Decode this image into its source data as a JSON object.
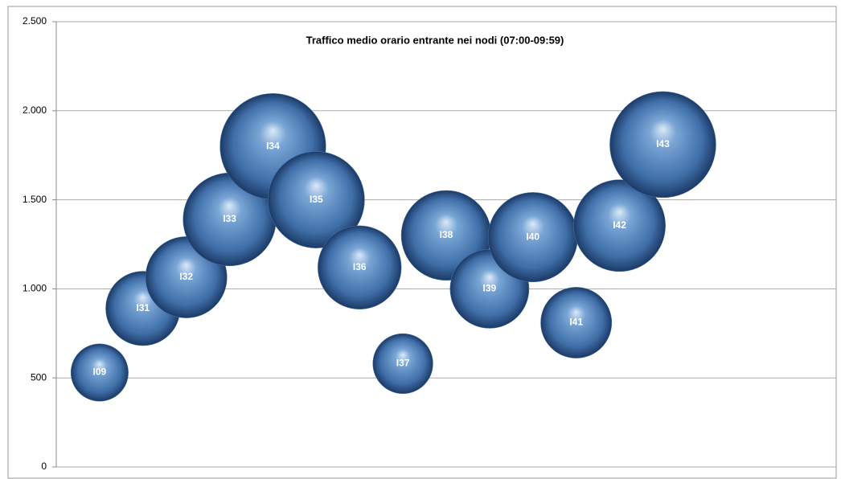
{
  "chart_data": {
    "type": "bubble",
    "title": "Traffico medio orario entrante nei nodi (07:00-09:59)",
    "categories": [
      "I09",
      "I31",
      "I32",
      "I33",
      "I34",
      "I35",
      "I36",
      "I37",
      "I38",
      "I39",
      "I40",
      "I41",
      "I42",
      "I43"
    ],
    "x": [
      1,
      2,
      3,
      4,
      5,
      6,
      7,
      8,
      9,
      10,
      11,
      12,
      13,
      14
    ],
    "values": [
      530,
      890,
      1065,
      1390,
      1800,
      1500,
      1120,
      580,
      1300,
      1000,
      1290,
      810,
      1355,
      1810
    ],
    "sizes": [
      530,
      890,
      1065,
      1390,
      1800,
      1500,
      1120,
      580,
      1300,
      1000,
      1290,
      810,
      1355,
      1810
    ],
    "color": "#4a7ab4",
    "xlim": [
      0,
      18
    ],
    "ylim": [
      0,
      2500
    ],
    "yticks": [
      0,
      500,
      {
        "value": 1000,
        "label": "1.000"
      },
      {
        "value": 1500,
        "label": "1.500"
      },
      {
        "value": 2000,
        "label": "2.000"
      },
      {
        "value": 2500,
        "label": "2.500"
      }
    ],
    "grid": true
  }
}
